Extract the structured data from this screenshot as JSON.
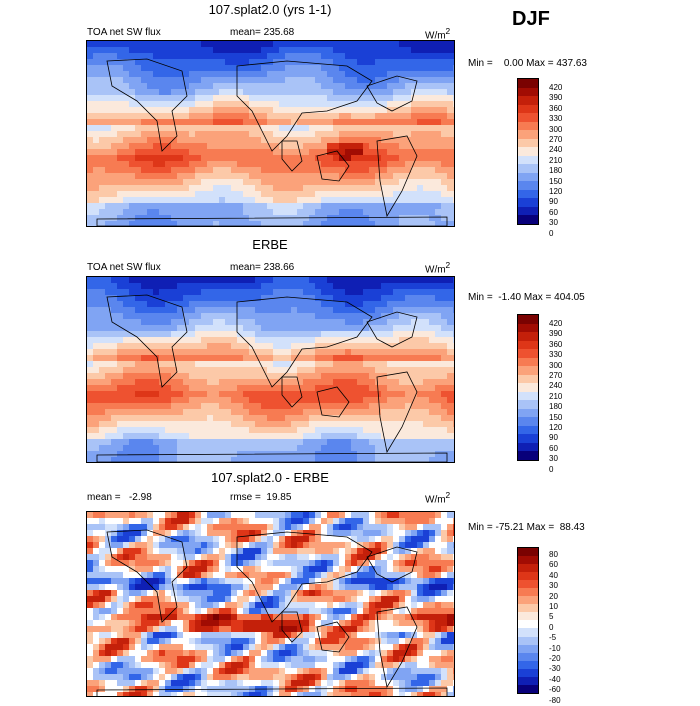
{
  "season": "DJF",
  "colors": {
    "abs": [
      "#08007a",
      "#0f1fb4",
      "#1a40d6",
      "#3366e8",
      "#5a86ee",
      "#80a4f3",
      "#a9c3f7",
      "#d2e1fb",
      "#fbe9dc",
      "#fcc9a8",
      "#fba27a",
      "#f77b52",
      "#ee5230",
      "#de3618",
      "#c4200a",
      "#a10c03",
      "#7a0201"
    ],
    "diff": [
      "#08007a",
      "#0f1fb4",
      "#1a40d6",
      "#3366e8",
      "#5a86ee",
      "#80a4f3",
      "#a9c3f7",
      "#d2e1fb",
      "#ffffff",
      "#fbe9dc",
      "#fcc9a8",
      "#fba27a",
      "#f77b52",
      "#ee5230",
      "#de3618",
      "#c4200a",
      "#a10c03",
      "#7a0201"
    ]
  },
  "panels": [
    {
      "title": "107.splat2.0 (yrs 1-1)",
      "left_label": "TOA net SW flux",
      "mean_text": "mean= 235.68",
      "unit_text": "W/m",
      "unit_sup": "2",
      "minmax_text": "Min =    0.00 Max = 437.63",
      "colorbar_ticks": [
        "420",
        "390",
        "360",
        "330",
        "300",
        "270",
        "240",
        "210",
        "180",
        "150",
        "120",
        "90",
        "60",
        "30",
        "0"
      ]
    },
    {
      "title": "ERBE",
      "left_label": "TOA net SW flux",
      "mean_text": "mean= 238.66",
      "unit_text": "W/m",
      "unit_sup": "2",
      "minmax_text": "Min =  -1.40 Max = 404.05",
      "colorbar_ticks": [
        "420",
        "390",
        "360",
        "330",
        "300",
        "270",
        "240",
        "210",
        "180",
        "150",
        "120",
        "90",
        "60",
        "30",
        "0"
      ]
    },
    {
      "title": "107.splat2.0 - ERBE",
      "left_label": "mean =   -2.98",
      "mean_text": "rmse =  19.85",
      "unit_text": "W/m",
      "unit_sup": "2",
      "minmax_text": "Min = -75.21 Max =  88.43",
      "colorbar_ticks": [
        "80",
        "60",
        "40",
        "30",
        "20",
        "10",
        "5",
        "0",
        "-5",
        "-10",
        "-20",
        "-30",
        "-40",
        "-60",
        "-80"
      ]
    }
  ]
}
